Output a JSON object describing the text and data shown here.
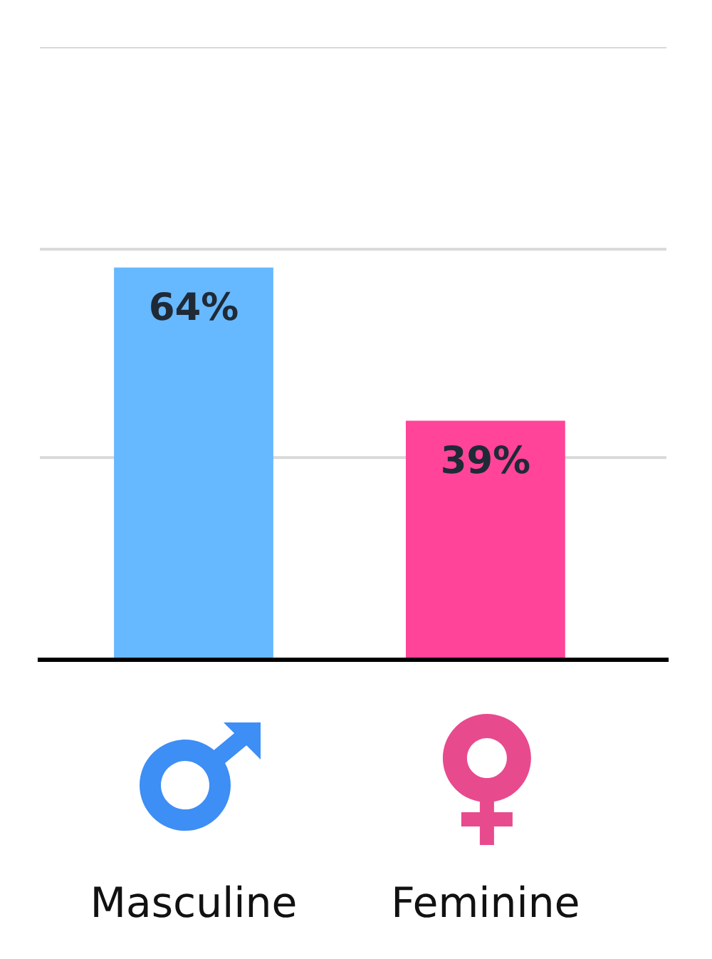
{
  "chart_data": {
    "type": "bar",
    "categories": [
      "Masculine",
      "Feminine"
    ],
    "values": [
      64,
      39
    ],
    "colors": [
      "#66b8ff",
      "#ff4499"
    ],
    "value_labels": [
      "64%",
      "39%"
    ],
    "ylim": [
      0,
      100
    ],
    "yticks": [
      {
        "value": 33,
        "label": null
      },
      {
        "value": 67,
        "label": null
      },
      {
        "value": 100,
        "label": null
      }
    ],
    "grid": "y",
    "tick_labels": "x"
  }
}
